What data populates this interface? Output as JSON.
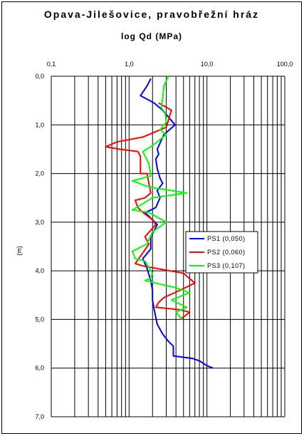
{
  "chart_data": {
    "type": "line",
    "title": "Opava-Jilešovice, pravobřežní hráz",
    "subtitle": "log Qd (MPa)",
    "xlabel": "log Qd (MPa)",
    "ylabel": "(m)",
    "x_scale": "log",
    "xlim": [
      0.1,
      100.0
    ],
    "ylim": [
      0.0,
      7.0
    ],
    "y_inverted": true,
    "grid": true,
    "legend_position": "right",
    "x_tick_labels": [
      "0,1",
      "1,0",
      "10,0",
      "100,0"
    ],
    "x_ticks": [
      0.1,
      1.0,
      10.0,
      100.0
    ],
    "y_tick_labels": [
      "0,0",
      "1,0",
      "2,0",
      "3,0",
      "4,0",
      "5,0",
      "6,0",
      "7,0"
    ],
    "y_ticks": [
      0,
      1,
      2,
      3,
      4,
      5,
      6,
      7
    ],
    "series": [
      {
        "name": "PS1 (0,050)",
        "color": "#0000ff",
        "points": [
          [
            1.9,
            0.05
          ],
          [
            1.7,
            0.2
          ],
          [
            1.4,
            0.4
          ],
          [
            2.1,
            0.55
          ],
          [
            2.7,
            0.7
          ],
          [
            3.9,
            1.0
          ],
          [
            2.8,
            1.2
          ],
          [
            2.3,
            1.5
          ],
          [
            2.4,
            1.6
          ],
          [
            2.2,
            1.7
          ],
          [
            2.3,
            1.9
          ],
          [
            2.5,
            2.1
          ],
          [
            2.7,
            2.2
          ],
          [
            2.3,
            2.35
          ],
          [
            2.5,
            2.5
          ],
          [
            2.2,
            2.7
          ],
          [
            1.9,
            2.75
          ],
          [
            1.6,
            2.8
          ],
          [
            2.0,
            2.95
          ],
          [
            2.3,
            3.05
          ],
          [
            1.9,
            3.3
          ],
          [
            1.9,
            3.55
          ],
          [
            1.5,
            3.75
          ],
          [
            1.7,
            3.95
          ],
          [
            1.9,
            4.2
          ],
          [
            2.0,
            4.4
          ],
          [
            2.0,
            4.6
          ],
          [
            2.1,
            4.8
          ],
          [
            2.3,
            5.1
          ],
          [
            2.7,
            5.3
          ],
          [
            3.2,
            5.45
          ],
          [
            3.7,
            5.55
          ],
          [
            3.7,
            5.75
          ],
          [
            6.5,
            5.8
          ],
          [
            8.0,
            5.85
          ],
          [
            10.0,
            5.95
          ],
          [
            12.0,
            6.0
          ]
        ]
      },
      {
        "name": "PS2 (0,060)",
        "color": "#ff0000",
        "points": [
          [
            2.4,
            0.55
          ],
          [
            3.5,
            0.7
          ],
          [
            3.0,
            1.05
          ],
          [
            1.5,
            1.25
          ],
          [
            0.7,
            1.35
          ],
          [
            0.5,
            1.45
          ],
          [
            0.75,
            1.5
          ],
          [
            1.3,
            1.55
          ],
          [
            1.4,
            1.65
          ],
          [
            1.4,
            2.0
          ],
          [
            1.7,
            2.0
          ],
          [
            1.9,
            2.4
          ],
          [
            1.6,
            2.5
          ],
          [
            1.2,
            2.55
          ],
          [
            1.3,
            2.7
          ],
          [
            1.5,
            2.8
          ],
          [
            2.0,
            2.95
          ],
          [
            2.2,
            3.05
          ],
          [
            1.6,
            3.3
          ],
          [
            1.8,
            3.45
          ],
          [
            1.4,
            3.7
          ],
          [
            1.2,
            3.85
          ],
          [
            1.5,
            3.9
          ],
          [
            5.0,
            4.05
          ],
          [
            7.0,
            4.25
          ],
          [
            4.5,
            4.4
          ],
          [
            2.8,
            4.55
          ],
          [
            2.4,
            4.65
          ],
          [
            2.2,
            4.75
          ],
          [
            4.5,
            4.8
          ],
          [
            6.0,
            4.85
          ],
          [
            5.0,
            4.95
          ],
          [
            4.5,
            5.0
          ]
        ]
      },
      {
        "name": "PS3 (0,107)",
        "color": "#00ff00",
        "points": [
          [
            3.2,
            0.0
          ],
          [
            2.8,
            0.2
          ],
          [
            2.7,
            0.45
          ],
          [
            2.6,
            0.65
          ],
          [
            2.9,
            0.75
          ],
          [
            3.0,
            0.95
          ],
          [
            2.5,
            1.1
          ],
          [
            3.0,
            1.2
          ],
          [
            2.3,
            1.35
          ],
          [
            1.9,
            1.45
          ],
          [
            1.5,
            1.55
          ],
          [
            1.8,
            1.8
          ],
          [
            1.9,
            2.05
          ],
          [
            1.1,
            2.15
          ],
          [
            1.6,
            2.25
          ],
          [
            2.2,
            2.3
          ],
          [
            3.5,
            2.35
          ],
          [
            5.5,
            2.4
          ],
          [
            2.0,
            2.5
          ],
          [
            1.1,
            2.75
          ],
          [
            1.8,
            2.8
          ],
          [
            3.0,
            3.0
          ],
          [
            2.0,
            3.2
          ],
          [
            1.7,
            3.45
          ],
          [
            1.1,
            3.6
          ],
          [
            1.2,
            3.75
          ],
          [
            1.6,
            3.8
          ],
          [
            2.0,
            4.05
          ],
          [
            1.9,
            4.15
          ],
          [
            1.6,
            4.2
          ],
          [
            4.0,
            4.35
          ],
          [
            6.0,
            4.45
          ],
          [
            3.5,
            4.6
          ],
          [
            5.5,
            4.75
          ],
          [
            4.0,
            4.85
          ],
          [
            4.8,
            5.0
          ]
        ]
      }
    ]
  }
}
